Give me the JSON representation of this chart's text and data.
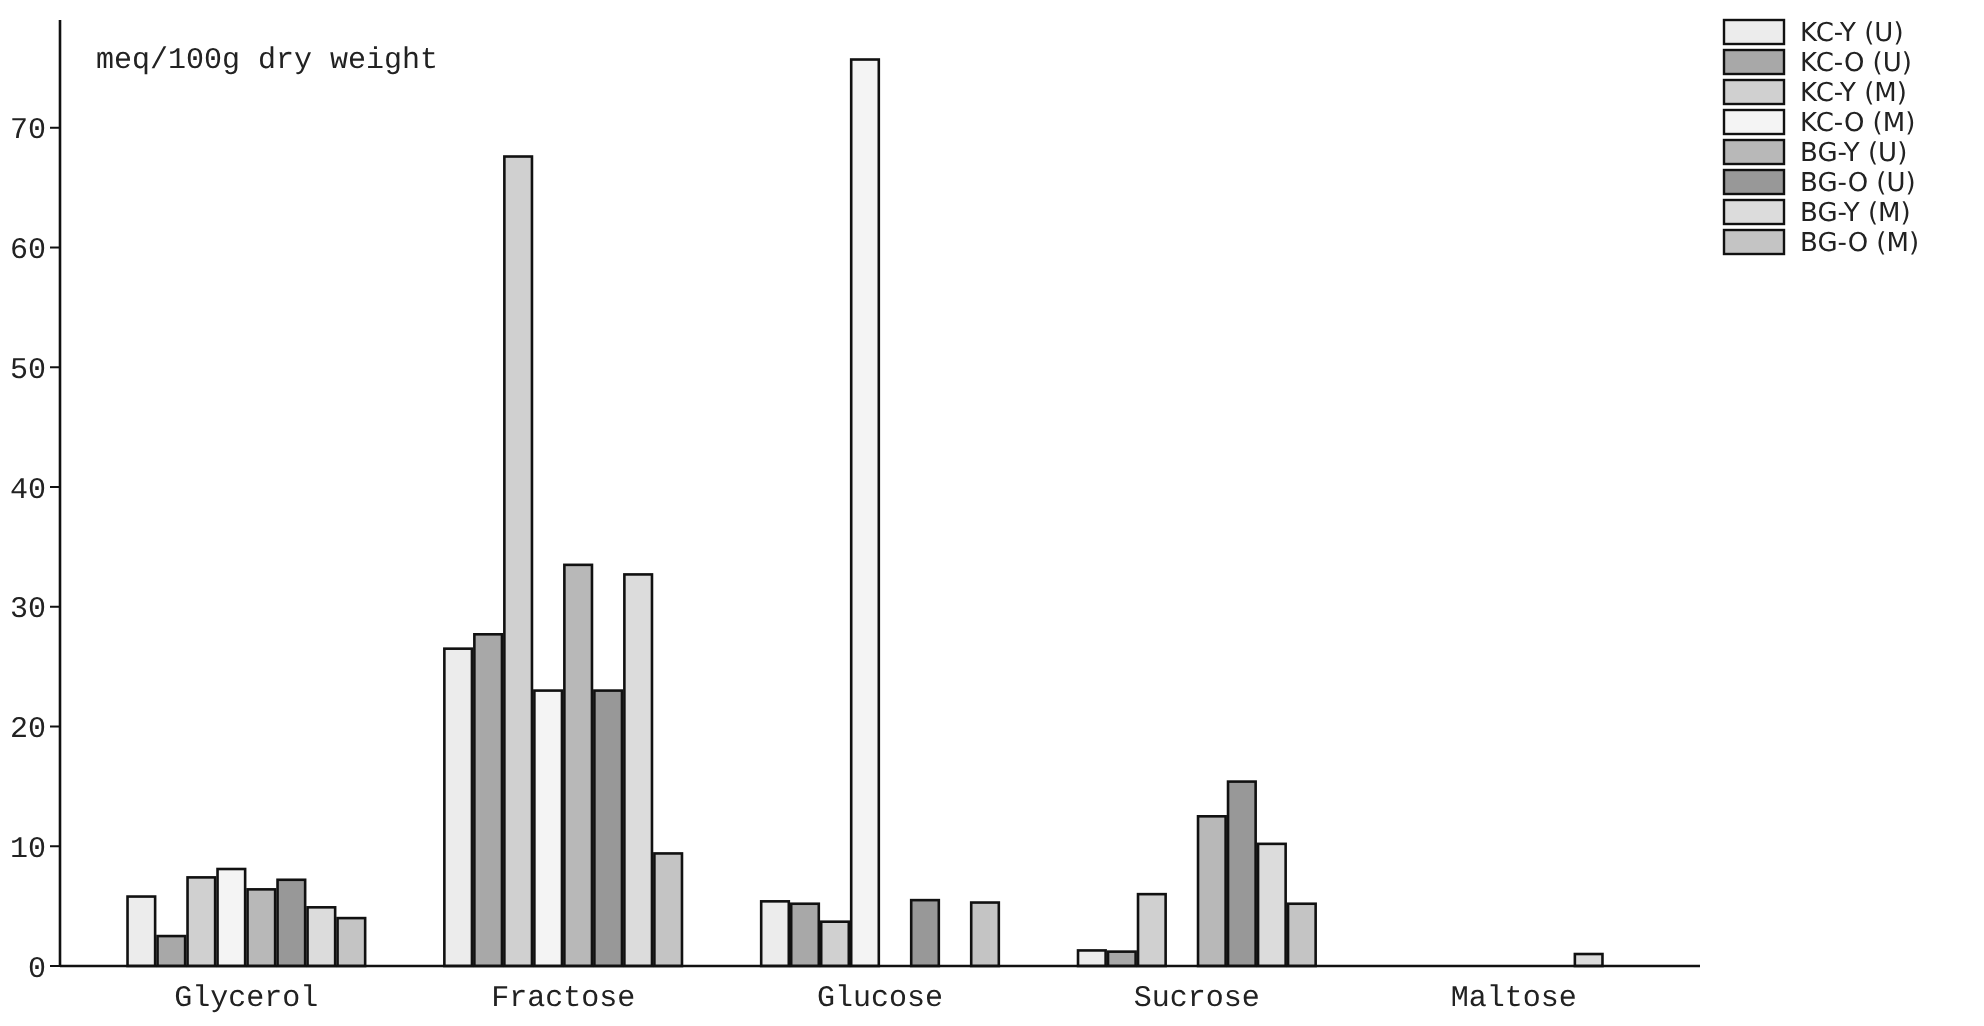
{
  "chart_data": {
    "type": "bar",
    "ylabel": "meq/100g dry weight",
    "categories": [
      "Glycerol",
      "Fractose",
      "Glucose",
      "Sucrose",
      "Maltose"
    ],
    "series": [
      {
        "name": "KC-Y (U)",
        "color": "#ececec",
        "values": [
          5.8,
          26.5,
          5.4,
          1.3,
          null
        ]
      },
      {
        "name": "KC-O (U)",
        "color": "#a8a8a8",
        "values": [
          2.5,
          27.7,
          5.2,
          1.2,
          null
        ]
      },
      {
        "name": "KC-Y (M)",
        "color": "#d0d0d0",
        "values": [
          7.4,
          67.6,
          3.7,
          6.0,
          null
        ]
      },
      {
        "name": "KC-O (M)",
        "color": "#f4f4f4",
        "values": [
          8.1,
          23.0,
          75.7,
          null,
          null
        ]
      },
      {
        "name": "BG-Y (U)",
        "color": "#b8b8b8",
        "values": [
          6.4,
          33.5,
          null,
          12.5,
          null
        ]
      },
      {
        "name": "BG-O (U)",
        "color": "#989898",
        "values": [
          7.2,
          23.0,
          5.5,
          15.4,
          null
        ]
      },
      {
        "name": "BG-Y (M)",
        "color": "#dcdcdc",
        "values": [
          4.9,
          32.7,
          null,
          10.2,
          1.0
        ]
      },
      {
        "name": "BG-O (M)",
        "color": "#c4c4c4",
        "values": [
          4.0,
          9.4,
          5.3,
          5.2,
          null
        ]
      }
    ],
    "ylim": [
      0,
      79
    ],
    "yticks": [
      0,
      10,
      20,
      30,
      40,
      50,
      60,
      70
    ],
    "grid": false,
    "legend": "top right"
  }
}
